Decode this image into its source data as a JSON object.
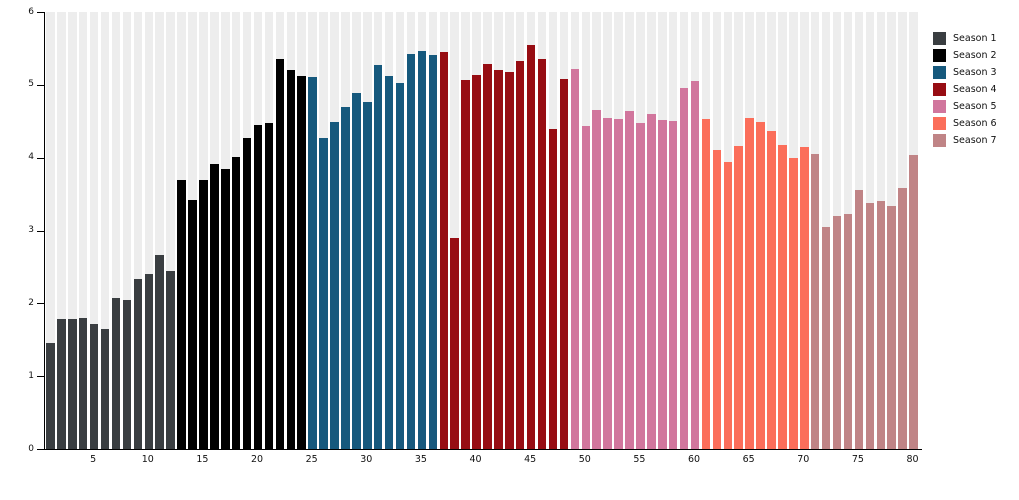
{
  "chart_data": {
    "type": "bar",
    "title": "",
    "xlabel": "",
    "ylabel": "",
    "x_unit": "episode number",
    "ylim": [
      0,
      6
    ],
    "yticks": [
      0,
      1,
      2,
      3,
      4,
      5,
      6
    ],
    "xticks": [
      5,
      10,
      15,
      20,
      25,
      30,
      35,
      40,
      45,
      50,
      55,
      60,
      65,
      70,
      75,
      80
    ],
    "grid": "none",
    "background_stripes": true,
    "stripe_color": "#ededed",
    "axis_color": "#000000",
    "legend_position": "right",
    "seasons": [
      {
        "name": "Season 1",
        "color": "#3a3e41",
        "start_episode": 1,
        "values": [
          1.45,
          1.78,
          1.79,
          1.8,
          1.72,
          1.65,
          2.08,
          2.05,
          2.33,
          2.4,
          2.66,
          2.45
        ]
      },
      {
        "name": "Season 2",
        "color": "#010101",
        "start_episode": 13,
        "values": [
          3.7,
          3.42,
          3.7,
          3.91,
          3.84,
          4.01,
          4.27,
          4.45,
          4.48,
          5.36,
          5.21,
          5.12
        ]
      },
      {
        "name": "Season 3",
        "color": "#16597d",
        "start_episode": 25,
        "values": [
          5.11,
          4.27,
          4.49,
          4.7,
          4.89,
          4.76,
          5.27,
          5.12,
          5.03,
          5.43,
          5.47,
          5.41
        ]
      },
      {
        "name": "Season 4",
        "color": "#970d13",
        "start_episode": 37,
        "values": [
          5.45,
          2.9,
          5.06,
          5.14,
          5.28,
          5.21,
          5.17,
          5.33,
          5.55,
          5.35,
          4.39,
          5.08
        ]
      },
      {
        "name": "Season 5",
        "color": "#d1769d",
        "start_episode": 49,
        "values": [
          5.22,
          4.44,
          4.66,
          4.55,
          4.53,
          4.64,
          4.47,
          4.6,
          4.52,
          4.5,
          4.95,
          5.05
        ]
      },
      {
        "name": "Season 6",
        "color": "#fb6e5a",
        "start_episode": 61,
        "values": [
          4.53,
          4.1,
          3.94,
          4.16,
          4.55,
          4.49,
          4.37,
          4.18,
          4.0,
          4.15
        ]
      },
      {
        "name": "Season 7",
        "color": "#c08486",
        "start_episode": 71,
        "values": [
          4.05,
          3.05,
          3.2,
          3.23,
          3.55,
          3.38,
          3.41,
          3.33,
          3.58,
          4.04
        ]
      }
    ]
  }
}
